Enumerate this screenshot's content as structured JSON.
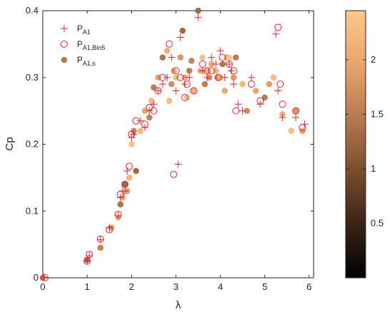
{
  "chart_data": {
    "type": "scatter",
    "xlabel": "λ",
    "ylabel": "Cp",
    "xlim": [
      0,
      6.1
    ],
    "ylim": [
      0,
      0.4
    ],
    "xticks": [
      "0",
      "1",
      "2",
      "3",
      "4",
      "5",
      "6"
    ],
    "yticks": [
      "0",
      "0.1",
      "0.2",
      "0.3",
      "0.4"
    ],
    "grid": false,
    "legend_position": "top-left",
    "legend": [
      {
        "base": "P",
        "sub": "A1",
        "marker": "plus"
      },
      {
        "base": "P",
        "sub": "A1,Bin5",
        "marker": "circle"
      },
      {
        "base": "P",
        "sub": "A1,s",
        "marker": "filled"
      }
    ],
    "colorbar": {
      "range": [
        0,
        2.45
      ],
      "ticks": [
        "0.5",
        "1",
        "1.5",
        "2"
      ],
      "tick_values": [
        0.5,
        1,
        1.5,
        2
      ],
      "colors": [
        "#000000",
        "#3a2416",
        "#7a4d2e",
        "#b77a4f",
        "#e8a66e",
        "#fdc68d"
      ]
    },
    "series": [
      {
        "marker": "plus",
        "color": "#e8202a",
        "x": [
          0.02,
          1.0,
          1.05,
          1.3,
          1.5,
          1.7,
          1.75,
          1.8,
          1.85,
          1.9,
          2.0,
          2.05,
          2.2,
          2.3,
          2.4,
          2.5,
          2.6,
          2.7,
          2.8,
          2.9,
          3.0,
          3.05,
          3.1,
          3.2,
          3.3,
          3.5,
          3.6,
          3.7,
          3.8,
          3.9,
          4.0,
          4.1,
          4.2,
          4.25,
          4.3,
          4.4,
          4.5,
          4.7,
          4.9,
          5.25,
          5.3,
          5.4,
          5.7,
          5.9
        ],
        "y": [
          0.001,
          0.025,
          0.033,
          0.057,
          0.075,
          0.093,
          0.12,
          0.13,
          0.13,
          0.16,
          0.21,
          0.215,
          0.235,
          0.225,
          0.25,
          0.26,
          0.28,
          0.29,
          0.3,
          0.33,
          0.28,
          0.17,
          0.36,
          0.29,
          0.3,
          0.39,
          0.31,
          0.3,
          0.33,
          0.32,
          0.34,
          0.3,
          0.32,
          0.31,
          0.29,
          0.26,
          0.25,
          0.3,
          0.26,
          0.365,
          0.28,
          0.24,
          0.24,
          0.23
        ]
      },
      {
        "marker": "circle",
        "color": "#e8202a",
        "x": [
          0.05,
          1.0,
          1.05,
          1.3,
          1.5,
          1.7,
          1.75,
          1.85,
          1.95,
          2.0,
          2.1,
          2.3,
          2.4,
          2.5,
          2.6,
          2.7,
          2.85,
          2.95,
          3.0,
          3.1,
          3.2,
          3.25,
          3.4,
          3.6,
          3.7,
          3.8,
          3.95,
          4.05,
          4.2,
          4.3,
          4.35,
          4.7,
          4.9,
          5.3,
          5.35,
          5.4,
          5.7,
          5.85
        ],
        "y": [
          0.0,
          0.025,
          0.035,
          0.058,
          0.072,
          0.095,
          0.125,
          0.14,
          0.167,
          0.215,
          0.235,
          0.23,
          0.255,
          0.25,
          0.28,
          0.3,
          0.35,
          0.155,
          0.31,
          0.3,
          0.27,
          0.29,
          0.28,
          0.32,
          0.31,
          0.31,
          0.3,
          0.33,
          0.32,
          0.31,
          0.25,
          0.29,
          0.265,
          0.375,
          0.29,
          0.26,
          0.25,
          0.225
        ]
      },
      {
        "marker": "filled",
        "x": [
          0.0,
          1.0,
          1.3,
          1.55,
          1.7,
          1.75,
          1.8,
          1.85,
          1.9,
          1.95,
          2.0,
          2.05,
          2.1,
          2.2,
          2.3,
          2.4,
          2.45,
          2.5,
          2.6,
          2.7,
          2.8,
          2.85,
          2.9,
          2.95,
          3.0,
          3.1,
          3.15,
          3.2,
          3.25,
          3.3,
          3.35,
          3.4,
          3.5,
          3.55,
          3.6,
          3.65,
          3.7,
          3.75,
          3.8,
          3.9,
          3.95,
          4.0,
          4.05,
          4.1,
          4.15,
          4.2,
          4.3,
          4.35,
          4.5,
          4.6,
          4.8,
          5.0,
          5.1,
          5.2,
          5.4,
          5.6,
          5.7,
          5.85
        ],
        "y": [
          0.0,
          0.027,
          0.045,
          0.075,
          0.09,
          0.11,
          0.12,
          0.14,
          0.13,
          0.15,
          0.2,
          0.22,
          0.16,
          0.22,
          0.25,
          0.24,
          0.265,
          0.285,
          0.3,
          0.33,
          0.34,
          0.265,
          0.29,
          0.31,
          0.3,
          0.33,
          0.37,
          0.3,
          0.27,
          0.31,
          0.325,
          0.28,
          0.4,
          0.31,
          0.33,
          0.29,
          0.31,
          0.3,
          0.32,
          0.31,
          0.3,
          0.3,
          0.32,
          0.28,
          0.33,
          0.33,
          0.3,
          0.33,
          0.29,
          0.25,
          0.28,
          0.27,
          0.29,
          0.3,
          0.245,
          0.22,
          0.25,
          0.22
        ],
        "c": [
          1.5,
          1.4,
          1.6,
          1.9,
          2.2,
          1.4,
          2.1,
          1.3,
          1.9,
          2.2,
          2.4,
          1.6,
          1.3,
          2.2,
          2.0,
          1.6,
          2.3,
          1.5,
          1.9,
          1.4,
          2.1,
          2.3,
          1.7,
          2.0,
          2.3,
          1.8,
          1.3,
          1.9,
          2.4,
          1.5,
          1.6,
          2.2,
          1.3,
          2.1,
          2.4,
          1.5,
          2.3,
          1.7,
          2.0,
          2.2,
          1.6,
          2.1,
          1.4,
          2.0,
          1.9,
          2.4,
          1.8,
          1.5,
          2.2,
          1.7,
          2.0,
          1.5,
          1.9,
          2.3,
          2.1,
          2.3,
          1.8,
          1.9
        ]
      }
    ]
  }
}
